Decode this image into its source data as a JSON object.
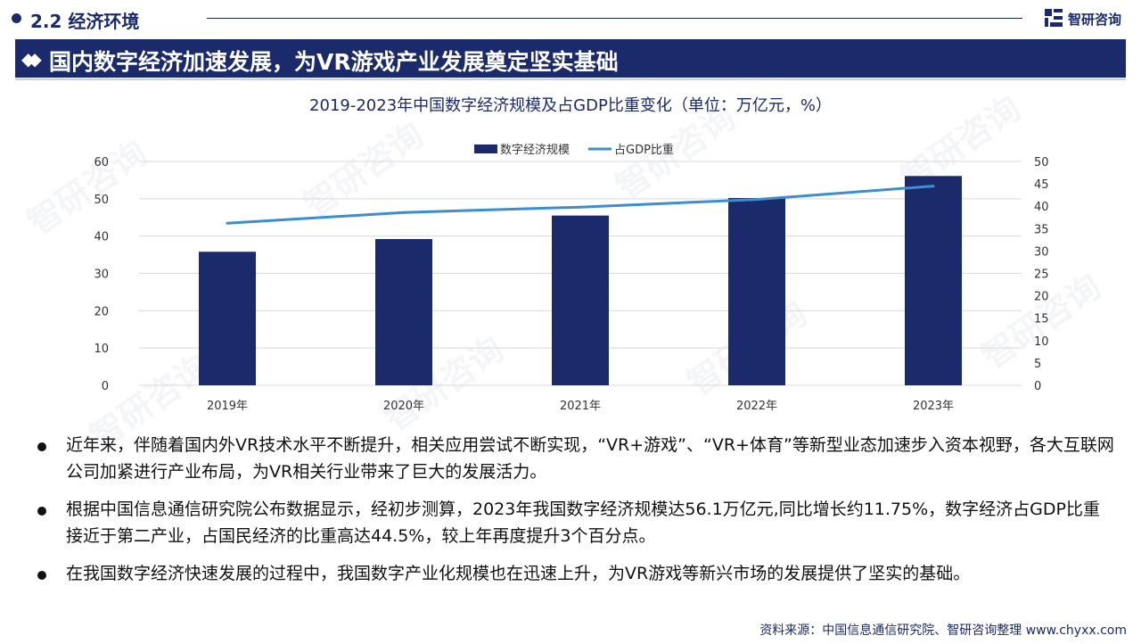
{
  "section": {
    "title": "2.2 经济环境"
  },
  "logo": {
    "text": "智研咨询"
  },
  "banner": {
    "text": "国内数字经济加速发展，为VR游戏产业发展奠定坚实基础"
  },
  "watermark": "智研咨询",
  "chart_data": {
    "type": "bar",
    "title": "2019-2023年中国数字经济规模及占GDP比重变化（单位：万亿元，%）",
    "categories": [
      "2019年",
      "2020年",
      "2021年",
      "2022年",
      "2023年"
    ],
    "series": [
      {
        "name": "数字经济规模",
        "type": "bar",
        "axis": "left",
        "color": "#1b2a6b",
        "values": [
          35.8,
          39.2,
          45.5,
          50.2,
          56.1
        ]
      },
      {
        "name": "占GDP比重",
        "type": "line",
        "axis": "right",
        "color": "#3b8fd0",
        "values": [
          36.2,
          38.6,
          39.8,
          41.5,
          44.5
        ]
      }
    ],
    "y_left": {
      "min": 0,
      "max": 60,
      "ticks": [
        "0",
        "10",
        "20",
        "30",
        "40",
        "50",
        "60"
      ]
    },
    "y_right": {
      "min": 0,
      "max": 50,
      "ticks": [
        "0",
        "5",
        "10",
        "15",
        "20",
        "25",
        "30",
        "35",
        "40",
        "45",
        "50"
      ]
    },
    "grid": true,
    "legend": "top"
  },
  "bullets": [
    "近年来，伴随着国内外VR技术水平不断提升，相关应用尝试不断实现，“VR+游戏”、“VR+体育”等新型业态加速步入资本视野，各大互联网公司加紧进行产业布局，为VR相关行业带来了巨大的发展活力。",
    "根据中国信息通信研究院公布数据显示，经初步测算，2023年我国数字经济规模达56.1万亿元,同比增长约11.75%，数字经济占GDP比重接近于第二产业，占国民经济的比重高达44.5%，较上年再度提升3个百分点。",
    "在我国数字经济快速发展的过程中，我国数字产业化规模也在迅速上升，为VR游戏等新兴市场的发展提供了坚实的基础。"
  ],
  "source": {
    "label": "资料来源：",
    "text": "中国信息通信研究院、智研咨询整理 www.chyxx.com"
  }
}
